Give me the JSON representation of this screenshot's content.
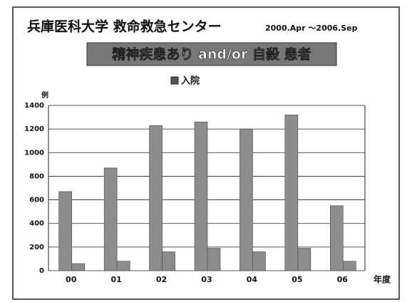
{
  "chart_data": {
    "type": "bar",
    "title": "兵庫医科大学 救命救急センター",
    "subtitle": "2000.Apr ～2006.Sep",
    "banner": "精神疾患あり and/or 自殺 患者",
    "y_label": "例",
    "x_label": "年度",
    "categories": [
      "00",
      "01",
      "02",
      "03",
      "04",
      "05",
      "06"
    ],
    "series": [
      {
        "color": "#8c8c8c",
        "values": [
          670,
          870,
          1230,
          1260,
          1200,
          1320,
          550
        ]
      },
      {
        "name": "入院",
        "color": "#8c8c8c",
        "values": [
          60,
          80,
          160,
          190,
          160,
          190,
          80
        ]
      }
    ],
    "legend_color": "#555555",
    "ylim": [
      0,
      1400
    ],
    "yticks": [
      0,
      200,
      400,
      600,
      800,
      1000,
      1200,
      1400
    ],
    "grid": true
  }
}
